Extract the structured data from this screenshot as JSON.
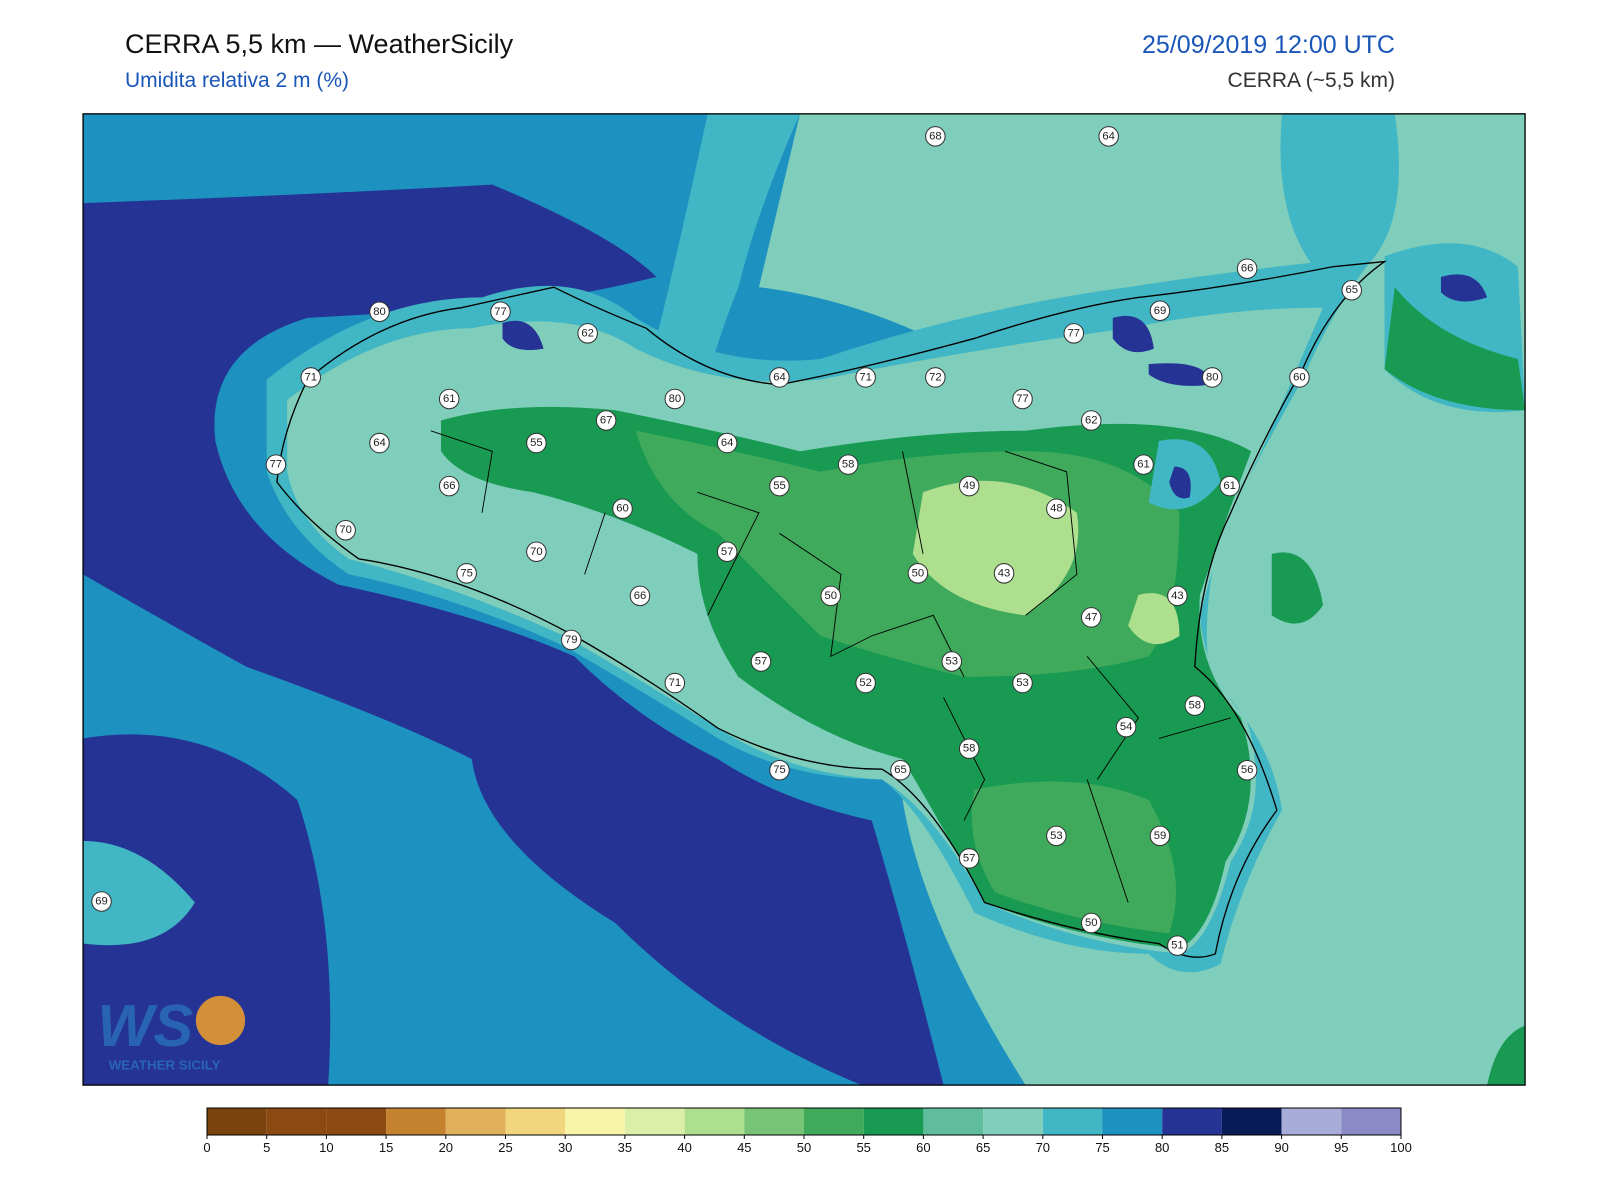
{
  "header": {
    "title": "CERRA 5,5 km — WeatherSicily",
    "subtitle": "Umidita relativa 2 m (%)",
    "datetime": "25/09/2019 12:00 UTC",
    "model": "CERRA (~5,5 km)"
  },
  "stations": [
    68,
    64,
    66,
    65,
    80,
    77,
    62,
    69,
    77,
    71,
    61,
    80,
    64,
    71,
    72,
    77,
    80,
    60,
    67,
    62,
    64,
    55,
    64,
    77,
    58,
    61,
    66,
    55,
    49,
    61,
    60,
    48,
    70,
    70,
    57,
    75,
    50,
    43,
    66,
    50,
    43,
    47,
    79,
    57,
    53,
    71,
    52,
    53,
    58,
    54,
    58,
    75,
    65,
    56,
    53,
    59,
    57,
    69,
    50,
    51
  ],
  "logo": {
    "mark": "WS",
    "text": "WEATHER SICILY"
  },
  "colorbar": {
    "ticks": [
      0,
      5,
      10,
      15,
      20,
      25,
      30,
      35,
      40,
      45,
      50,
      55,
      60,
      65,
      70,
      75,
      80,
      85,
      90,
      95,
      100
    ],
    "colors": [
      "#7b440e",
      "#8a4a12",
      "#8a4a12",
      "#c4822f",
      "#e0b05a",
      "#f2d67d",
      "#f7f5a8",
      "#dcefa8",
      "#addf8f",
      "#78c476",
      "#3faa5c",
      "#199a52",
      "#5fbd9d",
      "#7fcdbb",
      "#41b6c4",
      "#1d91c0",
      "#253494",
      "#081d58",
      "#a7acd8",
      "#8b89c6"
    ]
  }
}
